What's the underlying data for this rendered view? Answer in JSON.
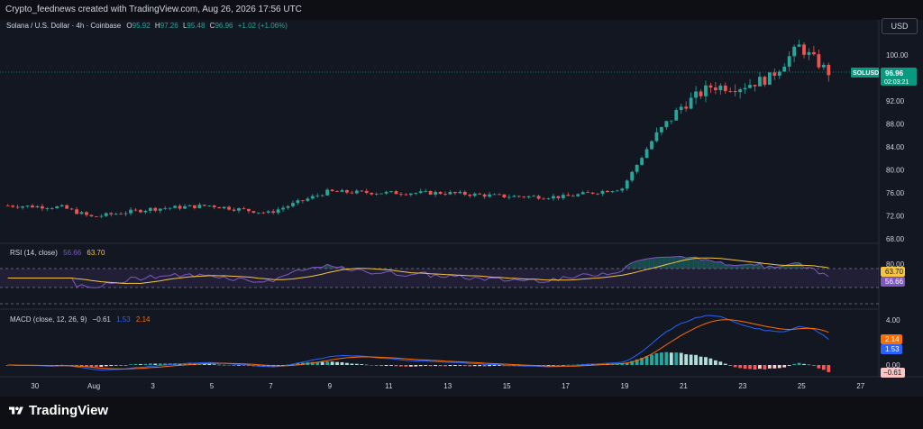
{
  "header": {
    "credit": "Crypto_feednews created with TradingView.com, Aug 26, 2026 17:56 UTC"
  },
  "currency_button": "USD",
  "legend": {
    "symbol": "Solana / U.S. Dollar · 4h · Coinbase",
    "o_label": "O",
    "o_value": "95.92",
    "h_label": "H",
    "h_value": "97.26",
    "l_label": "L",
    "l_value": "95.48",
    "c_label": "C",
    "c_value": "96.96",
    "change": "+1.02 (+1.06%)"
  },
  "price_tag": {
    "symbol": "SOLUSD",
    "price": "96.96",
    "countdown": "02:03:21"
  },
  "price_axis": [
    "100.00",
    "96.00",
    "92.00",
    "88.00",
    "84.00",
    "80.00",
    "76.00",
    "72.00",
    "68.00"
  ],
  "rsi": {
    "label": "RSI (14, close)",
    "value": "56.66",
    "ma_value": "63.70",
    "axis": [
      "80.00",
      "60.00",
      "40.00"
    ]
  },
  "macd": {
    "label": "MACD (close, 12, 26, 9)",
    "hist_value": "−0.61",
    "macd_value": "1.53",
    "signal_value": "2.14",
    "axis": [
      "4.00",
      "2.00",
      "0.00"
    ]
  },
  "time_axis": [
    "30",
    "Aug",
    "3",
    "5",
    "7",
    "9",
    "11",
    "13",
    "15",
    "17",
    "19",
    "21",
    "23",
    "25",
    "27"
  ],
  "colors": {
    "up": "#26a69a",
    "down": "#ef5350",
    "rsi_line": "#7e57c2",
    "rsi_ma": "#f5c542",
    "macd_line": "#2962ff",
    "signal_line": "#ff6d00",
    "price_tag": "#089981"
  },
  "brand": "TradingView",
  "chart_data": {
    "type": "candlestick",
    "timeframe": "4h",
    "x_range": [
      "Jul 29",
      "Aug 26"
    ],
    "ylim": [
      66,
      104
    ],
    "last_close": 96.96,
    "key_points": [
      {
        "date": "Jul 29",
        "price": 73.8
      },
      {
        "date": "Jul 31",
        "price": 73.5
      },
      {
        "date": "Aug 1",
        "price": 71.8
      },
      {
        "date": "Aug 3",
        "price": 73.2
      },
      {
        "date": "Aug 5",
        "price": 73.8
      },
      {
        "date": "Aug 7",
        "price": 72.5
      },
      {
        "date": "Aug 9",
        "price": 76.2
      },
      {
        "date": "Aug 11",
        "price": 76.0
      },
      {
        "date": "Aug 13",
        "price": 76.0
      },
      {
        "date": "Aug 15",
        "price": 75.4
      },
      {
        "date": "Aug 17",
        "price": 75.3
      },
      {
        "date": "Aug 19",
        "price": 76.8
      },
      {
        "date": "Aug 20",
        "price": 85.0
      },
      {
        "date": "Aug 21",
        "price": 91.0
      },
      {
        "date": "Aug 22",
        "price": 94.5
      },
      {
        "date": "Aug 23",
        "price": 94.5
      },
      {
        "date": "Aug 24",
        "price": 96.0
      },
      {
        "date": "Aug 25",
        "price": 101.5
      },
      {
        "date": "Aug 26",
        "price": 96.96
      }
    ]
  }
}
